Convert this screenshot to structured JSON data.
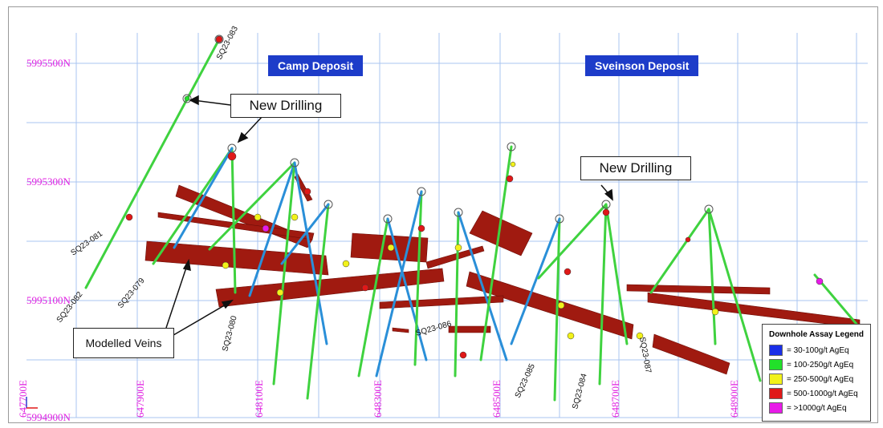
{
  "deposits": [
    {
      "name": "Camp Deposit"
    },
    {
      "name": "Sveinson Deposit"
    }
  ],
  "callouts": [
    {
      "text": "New Drilling"
    },
    {
      "text": "New Drilling"
    },
    {
      "text": "Modelled Veins"
    }
  ],
  "northings": [
    "5995500N",
    "5995300N",
    "5995100N",
    "5994900N"
  ],
  "eastings": [
    "647700E",
    "647900E",
    "648100E",
    "648300E",
    "648500E",
    "648700E",
    "648900E"
  ],
  "drillholes": [
    "SQ23-083",
    "SQ23-081",
    "SQ23-082",
    "SQ23-079",
    "SQ23-080",
    "SQ23-086",
    "SQ23-085",
    "SQ23-084",
    "SQ23-087"
  ],
  "legend": {
    "title": "Downhole Assay Legend",
    "items": [
      {
        "label": "= 30-100g/t AgEq",
        "color": "#1a2fe8"
      },
      {
        "label": "= 100-250g/t AgEq",
        "color": "#22e02a"
      },
      {
        "label": "= 250-500g/t AgEq",
        "color": "#f2f21a"
      },
      {
        "label": "= 500-1000g/t AgEq",
        "color": "#e01818"
      },
      {
        "label": "= >1000g/t AgEq",
        "color": "#e81ae8"
      }
    ]
  },
  "colors": {
    "grid": "#aac4f0",
    "vein": "#a01a10",
    "trace_green": "#3fd23f",
    "trace_blue": "#2a8fd8"
  }
}
